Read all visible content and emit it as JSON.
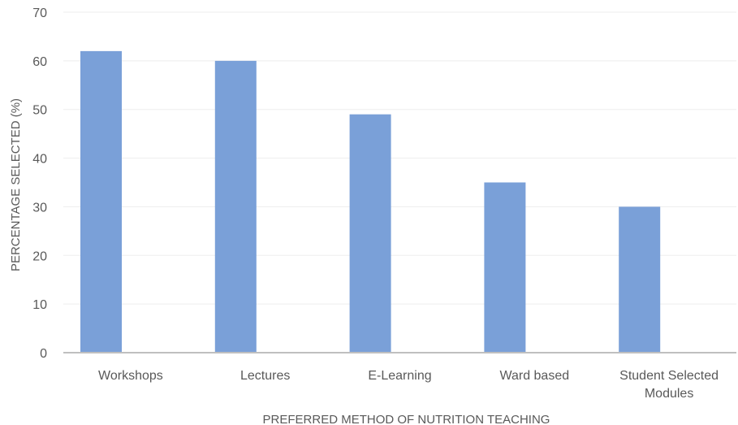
{
  "chart_data": {
    "type": "bar",
    "title": "",
    "categories": [
      [
        "Workshops"
      ],
      [
        "Lectures"
      ],
      [
        "E-Learning"
      ],
      [
        "Ward based"
      ],
      [
        "Student Selected",
        "Modules"
      ]
    ],
    "values": [
      62,
      60,
      49,
      35,
      30
    ],
    "xlabel": "PREFERRED METHOD  OF NUTRITION TEACHING",
    "ylabel": "PERCENTAGE SELECTED (%)",
    "ylim": [
      0,
      70
    ],
    "yticks": [
      0,
      10,
      20,
      30,
      40,
      50,
      60,
      70
    ],
    "grid": true,
    "legend": "none",
    "bar_color": "#7aa0d8"
  }
}
